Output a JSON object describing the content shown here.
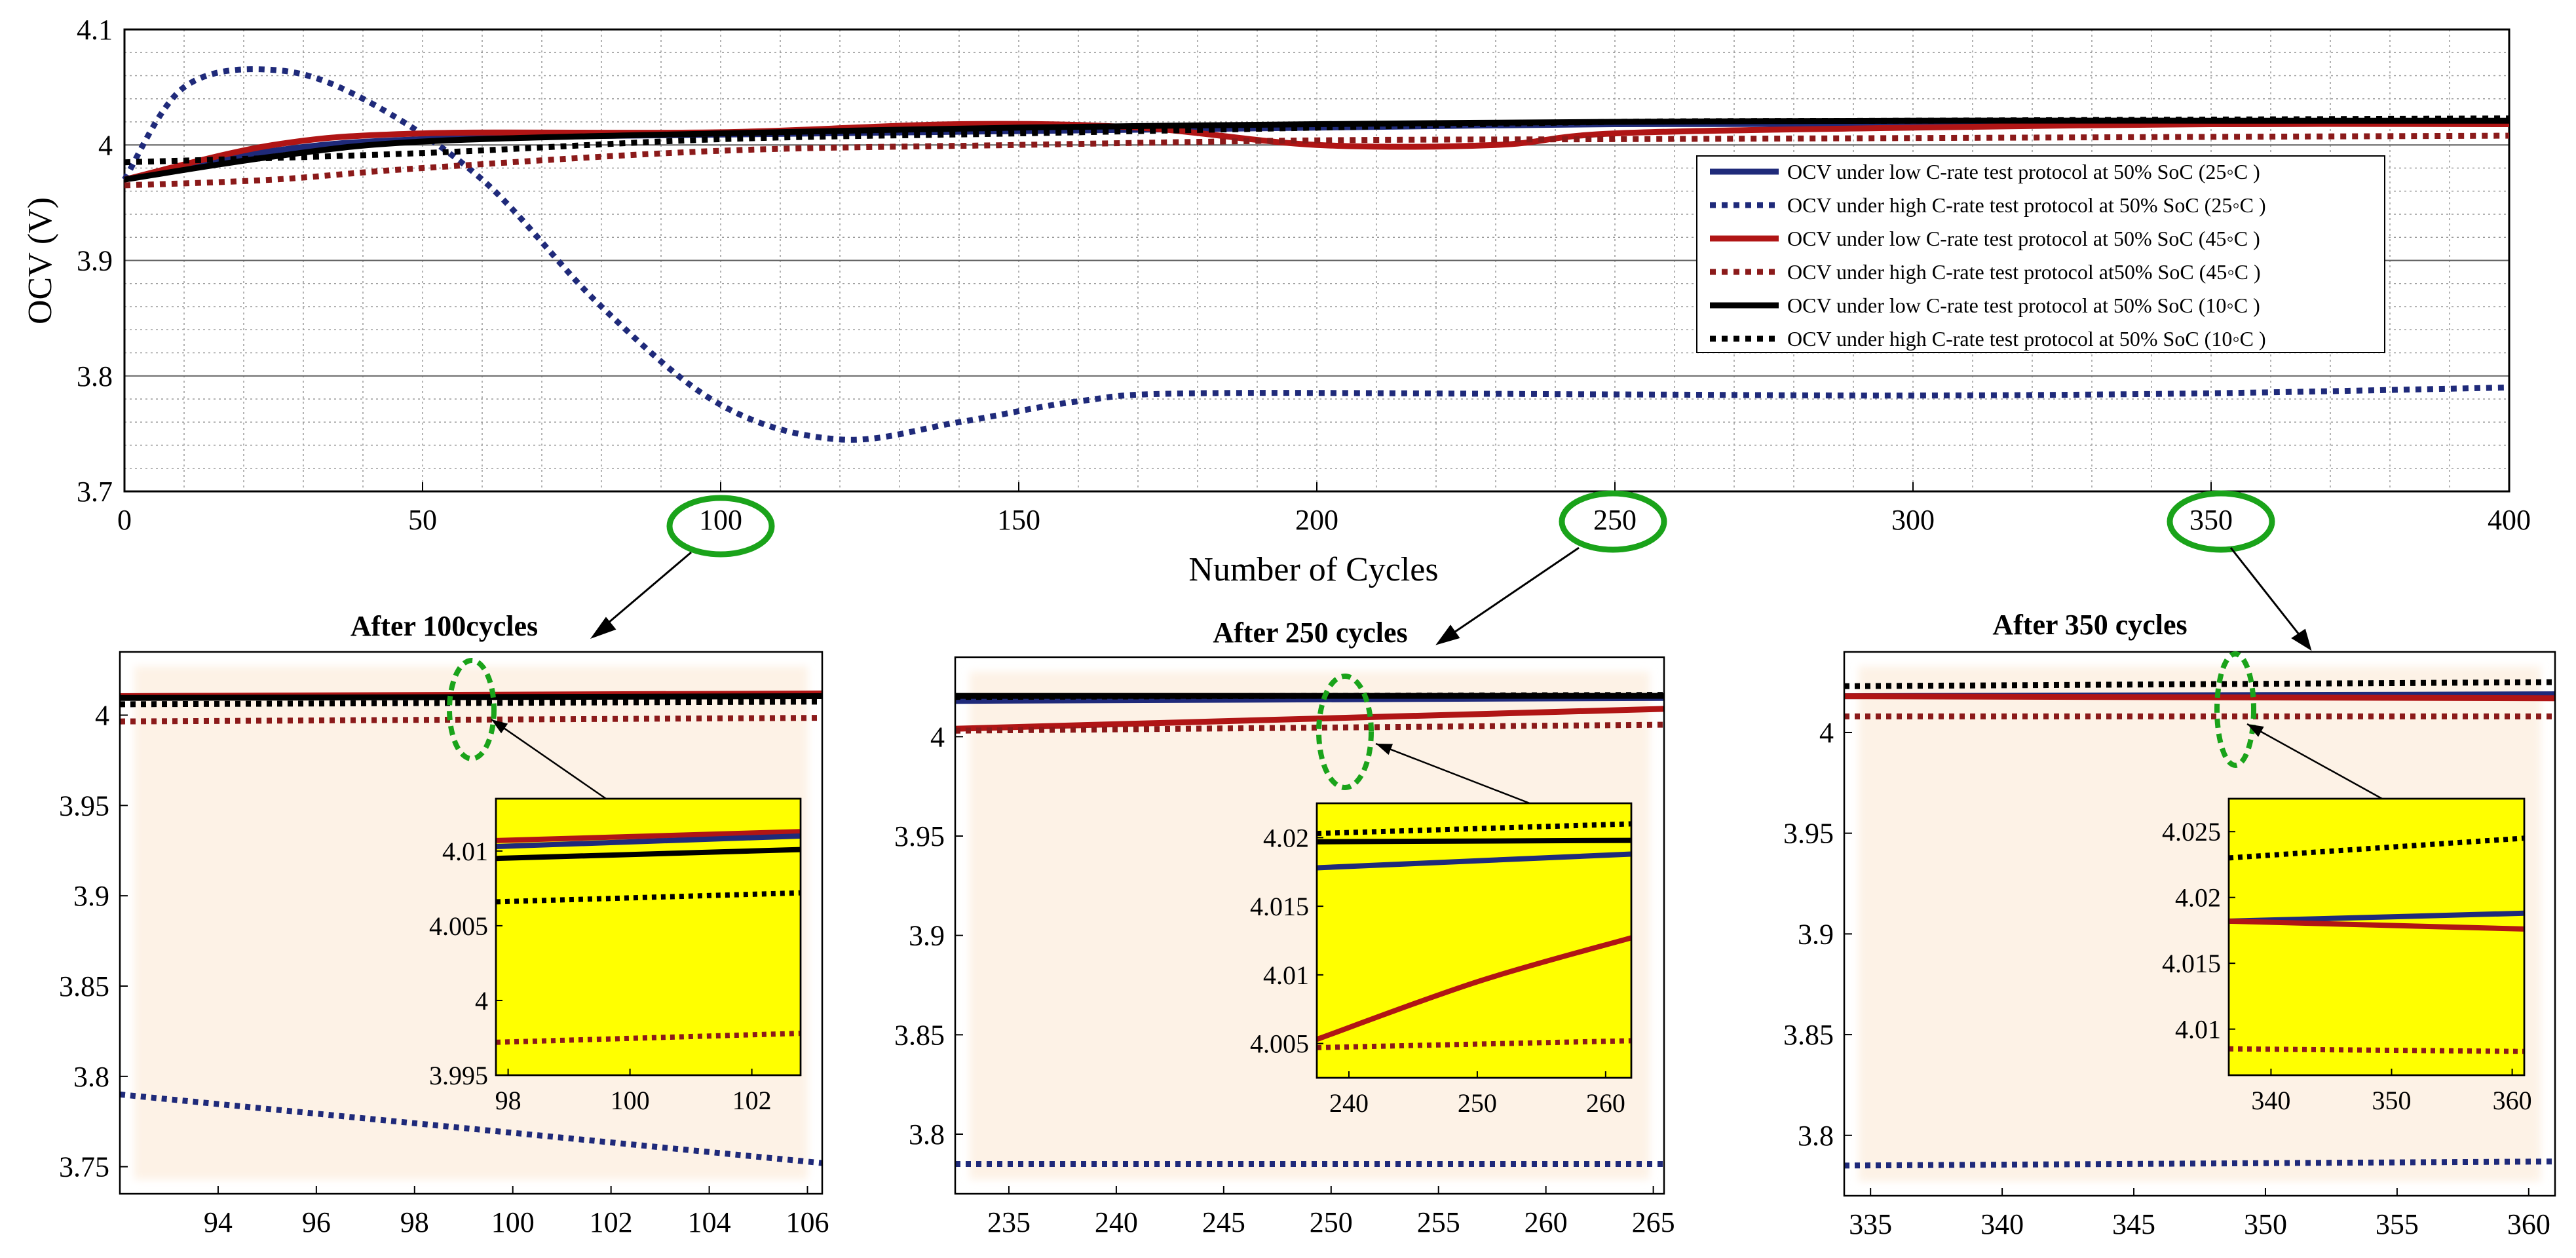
{
  "chart_data": [
    {
      "id": "main",
      "type": "line",
      "title": "",
      "xlabel": "Number of  Cycles",
      "ylabel": "OCV (V)",
      "xlim": [
        0,
        400
      ],
      "ylim": [
        3.7,
        4.1
      ],
      "xticks": [
        "0",
        "50",
        "100",
        "150",
        "200",
        "250",
        "300",
        "350",
        "400"
      ],
      "yticks": [
        "3.7",
        "3.8",
        "3.9",
        "4",
        "4.1"
      ],
      "grid": true,
      "legend_position": "right",
      "highlighted_ticks": [
        "100",
        "250",
        "350"
      ],
      "series": [
        {
          "name": "OCV under low C-rate test protocol at 50% SoC (25◦C )",
          "color": "#1f2a7a",
          "style": "solid",
          "x": [
            0,
            25,
            50,
            100,
            150,
            200,
            250,
            300,
            350,
            400
          ],
          "y": [
            3.97,
            3.995,
            4.005,
            4.009,
            4.012,
            4.015,
            4.018,
            4.018,
            4.018,
            4.019
          ]
        },
        {
          "name": "OCV under high C-rate test protocol at 50% SoC (25◦C )",
          "color": "#1f2a7a",
          "style": "dotted",
          "x": [
            0,
            10,
            25,
            40,
            60,
            80,
            100,
            120,
            140,
            160,
            180,
            250,
            300,
            350,
            400
          ],
          "y": [
            3.97,
            4.05,
            4.065,
            4.04,
            3.97,
            3.86,
            3.775,
            3.745,
            3.76,
            3.778,
            3.785,
            3.784,
            3.783,
            3.785,
            3.79
          ]
        },
        {
          "name": "OCV under low C-rate test protocol at 50% SoC (45◦C )",
          "color": "#b01515",
          "style": "solid",
          "x": [
            0,
            25,
            50,
            100,
            140,
            170,
            200,
            230,
            250,
            300,
            350,
            400
          ],
          "y": [
            3.97,
            4.0,
            4.01,
            4.011,
            4.018,
            4.015,
            4.0,
            4.0,
            4.01,
            4.015,
            4.018,
            4.018
          ]
        },
        {
          "name": "OCV under high C-rate test protocol at50% SoC (45◦C )",
          "color": "#8b1a1a",
          "style": "dotted",
          "x": [
            0,
            25,
            50,
            100,
            150,
            200,
            250,
            300,
            350,
            400
          ],
          "y": [
            3.965,
            3.97,
            3.98,
            3.995,
            4.0,
            4.004,
            4.005,
            4.006,
            4.007,
            4.008
          ]
        },
        {
          "name": "OCV under low C-rate test protocol at 50% SoC (10◦C )",
          "color": "#000000",
          "style": "solid",
          "x": [
            0,
            25,
            50,
            100,
            150,
            200,
            250,
            300,
            350,
            400
          ],
          "y": [
            3.97,
            3.99,
            4.003,
            4.01,
            4.015,
            4.018,
            4.02,
            4.021,
            4.021,
            4.021
          ]
        },
        {
          "name": "OCV under high C-rate test protocol at 50% SoC (10◦C )",
          "color": "#000000",
          "style": "dotted",
          "x": [
            0,
            50,
            100,
            150,
            200,
            250,
            300,
            350,
            400
          ],
          "y": [
            3.985,
            3.993,
            4.005,
            4.01,
            4.015,
            4.02,
            4.021,
            4.022,
            4.023
          ]
        }
      ]
    },
    {
      "id": "after100",
      "type": "line",
      "title": "After 100cycles",
      "xlim": [
        92,
        106.3
      ],
      "ylim": [
        3.735,
        4.035
      ],
      "xticks": [
        "94",
        "96",
        "98",
        "100",
        "102",
        "104",
        "106"
      ],
      "yticks": [
        "3.75",
        "3.8",
        "3.85",
        "3.9",
        "3.95",
        "4"
      ],
      "series": [
        {
          "name": "blue-solid",
          "color": "#1f2a7a",
          "style": "solid",
          "x": [
            92,
            106.3
          ],
          "y": [
            4.0105,
            4.0115
          ]
        },
        {
          "name": "blue-dotted",
          "color": "#1f2a7a",
          "style": "dotted",
          "x": [
            92,
            106.3
          ],
          "y": [
            3.79,
            3.752
          ]
        },
        {
          "name": "red-solid",
          "color": "#b01515",
          "style": "solid",
          "x": [
            92,
            106.3
          ],
          "y": [
            4.0105,
            4.012
          ]
        },
        {
          "name": "red-dotted",
          "color": "#8b1a1a",
          "style": "dotted",
          "x": [
            92,
            106.3
          ],
          "y": [
            3.9965,
            3.9985
          ]
        },
        {
          "name": "black-solid",
          "color": "#000000",
          "style": "solid",
          "x": [
            92,
            106.3
          ],
          "y": [
            4.0095,
            4.0105
          ]
        },
        {
          "name": "black-dotted",
          "color": "#000000",
          "style": "dotted",
          "x": [
            92,
            106.3
          ],
          "y": [
            4.006,
            4.0075
          ]
        }
      ],
      "inset": {
        "xlim": [
          97.8,
          102.8
        ],
        "ylim": [
          3.995,
          4.0135
        ],
        "xticks": [
          "98",
          "100",
          "102"
        ],
        "yticks": [
          "3.995",
          "4",
          "4.005",
          "4.01"
        ],
        "series": [
          {
            "name": "red-solid",
            "color": "#b01515",
            "style": "solid",
            "x": [
              97.8,
              102.8
            ],
            "y": [
              4.0107,
              4.0113
            ]
          },
          {
            "name": "blue-solid",
            "color": "#1f2a7a",
            "style": "solid",
            "x": [
              97.8,
              102.8
            ],
            "y": [
              4.0103,
              4.011
            ]
          },
          {
            "name": "black-solid",
            "color": "#000000",
            "style": "solid",
            "x": [
              97.8,
              102.8
            ],
            "y": [
              4.0095,
              4.0101
            ]
          },
          {
            "name": "black-dotted",
            "color": "#000000",
            "style": "dotted",
            "x": [
              97.8,
              102.8
            ],
            "y": [
              4.0066,
              4.0072
            ]
          },
          {
            "name": "red-dotted",
            "color": "#8b1a1a",
            "style": "dotted",
            "x": [
              97.8,
              102.8
            ],
            "y": [
              3.9972,
              3.9978
            ]
          }
        ]
      }
    },
    {
      "id": "after250",
      "type": "line",
      "title": "After 250 cycles",
      "xlim": [
        232.5,
        265.5
      ],
      "ylim": [
        3.77,
        4.04
      ],
      "xticks": [
        "235",
        "240",
        "245",
        "250",
        "255",
        "260",
        "265"
      ],
      "yticks": [
        "3.8",
        "3.85",
        "3.9",
        "3.95",
        "4"
      ],
      "series": [
        {
          "name": "blue-solid",
          "color": "#1f2a7a",
          "style": "solid",
          "x": [
            232.5,
            265.5
          ],
          "y": [
            4.018,
            4.0195
          ]
        },
        {
          "name": "blue-dotted",
          "color": "#1f2a7a",
          "style": "dotted",
          "x": [
            232.5,
            265.5
          ],
          "y": [
            3.785,
            3.785
          ]
        },
        {
          "name": "red-solid",
          "color": "#b01515",
          "style": "solid",
          "x": [
            232.5,
            265.5
          ],
          "y": [
            4.004,
            4.014
          ]
        },
        {
          "name": "red-dotted",
          "color": "#8b1a1a",
          "style": "dotted",
          "x": [
            232.5,
            265.5
          ],
          "y": [
            4.003,
            4.006
          ]
        },
        {
          "name": "black-solid",
          "color": "#000000",
          "style": "solid",
          "x": [
            232.5,
            265.5
          ],
          "y": [
            4.0205,
            4.0205
          ]
        },
        {
          "name": "black-dotted",
          "color": "#000000",
          "style": "dotted",
          "x": [
            232.5,
            265.5
          ],
          "y": [
            4.02,
            4.021
          ]
        }
      ],
      "inset": {
        "xlim": [
          237.5,
          262
        ],
        "ylim": [
          4.0025,
          4.0225
        ],
        "xticks": [
          "240",
          "250",
          "260"
        ],
        "yticks": [
          "4.005",
          "4.01",
          "4.015",
          "4.02"
        ],
        "series": [
          {
            "name": "black-dotted",
            "color": "#000000",
            "style": "dotted",
            "x": [
              237.5,
              262
            ],
            "y": [
              4.0203,
              4.021
            ]
          },
          {
            "name": "black-solid",
            "color": "#000000",
            "style": "solid",
            "x": [
              237.5,
              262
            ],
            "y": [
              4.0197,
              4.0198
            ]
          },
          {
            "name": "blue-solid",
            "color": "#1f2a7a",
            "style": "solid",
            "x": [
              237.5,
              262
            ],
            "y": [
              4.0178,
              4.0188
            ]
          },
          {
            "name": "red-solid",
            "color": "#b01515",
            "style": "solid",
            "x": [
              237.5,
              250,
              262
            ],
            "y": [
              4.0053,
              4.0095,
              4.0127
            ]
          },
          {
            "name": "red-dotted",
            "color": "#8b1a1a",
            "style": "dotted",
            "x": [
              237.5,
              262
            ],
            "y": [
              4.0047,
              4.0052
            ]
          }
        ]
      }
    },
    {
      "id": "after350",
      "type": "line",
      "title": "After 350 cycles",
      "xlim": [
        334,
        361
      ],
      "ylim": [
        3.77,
        4.04
      ],
      "xticks": [
        "335",
        "340",
        "345",
        "350",
        "355",
        "360"
      ],
      "yticks": [
        "3.8",
        "3.85",
        "3.9",
        "3.95",
        "4"
      ],
      "series": [
        {
          "name": "blue-solid",
          "color": "#1f2a7a",
          "style": "solid",
          "x": [
            334,
            361
          ],
          "y": [
            4.018,
            4.019
          ]
        },
        {
          "name": "blue-dotted",
          "color": "#1f2a7a",
          "style": "dotted",
          "x": [
            334,
            361
          ],
          "y": [
            3.785,
            3.787
          ]
        },
        {
          "name": "red-solid",
          "color": "#b01515",
          "style": "solid",
          "x": [
            334,
            361
          ],
          "y": [
            4.018,
            4.017
          ]
        },
        {
          "name": "red-dotted",
          "color": "#8b1a1a",
          "style": "dotted",
          "x": [
            334,
            361
          ],
          "y": [
            4.008,
            4.008
          ]
        },
        {
          "name": "black-dotted",
          "color": "#000000",
          "style": "dotted",
          "x": [
            334,
            361
          ],
          "y": [
            4.023,
            4.025
          ]
        }
      ],
      "inset": {
        "xlim": [
          336.5,
          361
        ],
        "ylim": [
          4.0065,
          4.0275
        ],
        "xticks": [
          "340",
          "350",
          "360"
        ],
        "yticks": [
          "4.01",
          "4.015",
          "4.02",
          "4.025"
        ],
        "series": [
          {
            "name": "black-dotted",
            "color": "#000000",
            "style": "dotted",
            "x": [
              336.5,
              361
            ],
            "y": [
              4.023,
              4.0245
            ]
          },
          {
            "name": "blue-solid",
            "color": "#1f2a7a",
            "style": "solid",
            "x": [
              336.5,
              361
            ],
            "y": [
              4.0182,
              4.0188
            ]
          },
          {
            "name": "red-solid",
            "color": "#b01515",
            "style": "solid",
            "x": [
              336.5,
              361
            ],
            "y": [
              4.0182,
              4.0176
            ]
          },
          {
            "name": "red-dotted",
            "color": "#8b1a1a",
            "style": "dotted",
            "x": [
              336.5,
              361
            ],
            "y": [
              4.0085,
              4.0083
            ]
          }
        ]
      }
    }
  ]
}
